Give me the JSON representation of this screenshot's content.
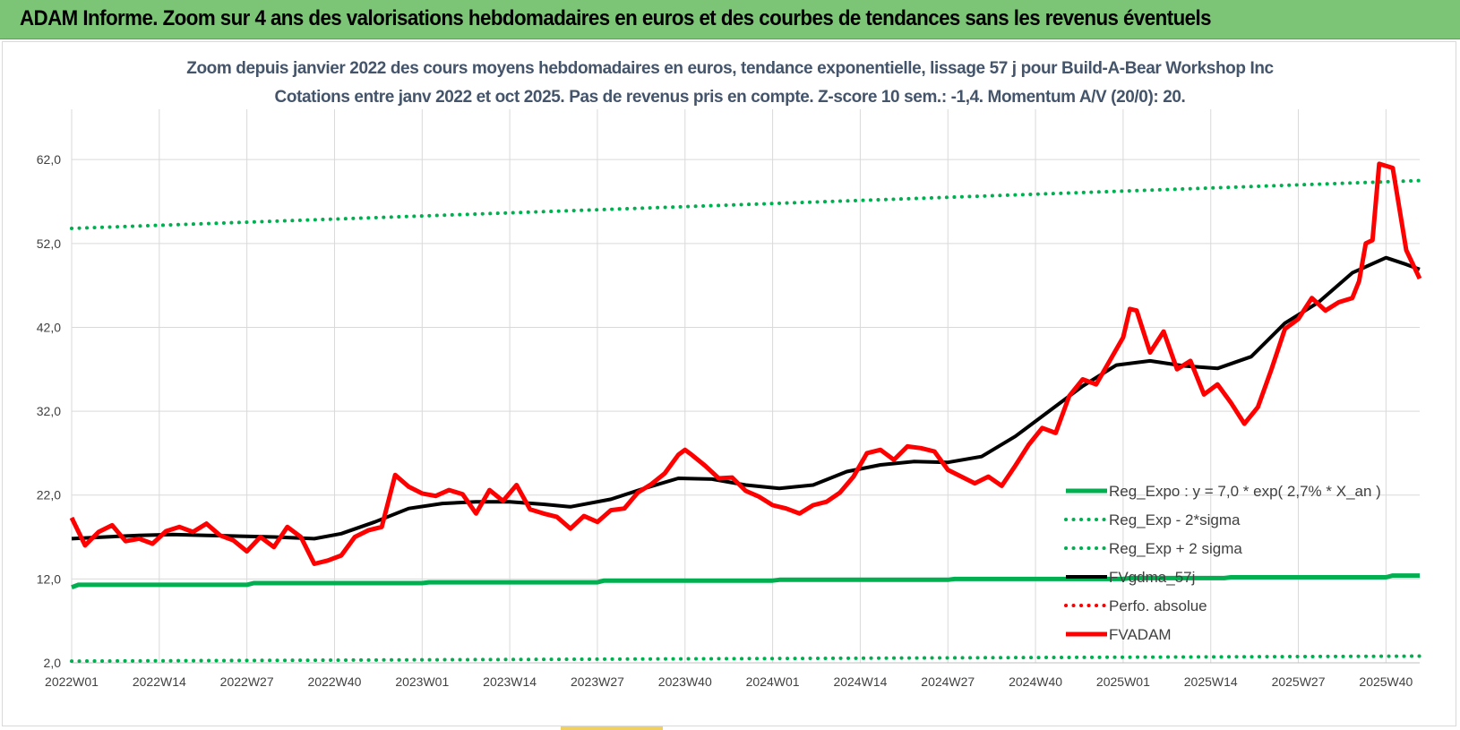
{
  "banner": {
    "title": "ADAM Informe. Zoom sur 4 ans des valorisations hebdomadaires en euros et des courbes de tendances sans les revenus éventuels"
  },
  "colors": {
    "banner": "#7cc576",
    "reg_expo": "#00b050",
    "sigma_bands": "#00b050",
    "fvgdma": "#000000",
    "perfo": "#ff0000",
    "fvadam": "#ff0000",
    "title_text": "#44546a",
    "grid": "#d9d9d9"
  },
  "chart_data": {
    "type": "line",
    "title": "Zoom depuis janvier 2022 des cours moyens hebdomadaires en euros, tendance exponentielle, lissage 57 j pour Build-A-Bear Workshop Inc",
    "subtitle": "Cotations entre janv 2022 et oct 2025. Pas de revenus pris en compte. Z-score 10 sem.: -1,4. Momentum A/V (20/0): 20.",
    "xlabel": "",
    "ylabel": "",
    "ylim": [
      2,
      68
    ],
    "yticks": [
      "2,0",
      "12,0",
      "22,0",
      "32,0",
      "42,0",
      "52,0",
      "62,0"
    ],
    "xticks": [
      "2022W01",
      "2022W14",
      "2022W27",
      "2022W40",
      "2023W01",
      "2023W14",
      "2023W27",
      "2023W40",
      "2024W01",
      "2024W14",
      "2024W27",
      "2024W40",
      "2025W01",
      "2025W14",
      "2025W27",
      "2025W40"
    ],
    "xtick_weeks": [
      0,
      13,
      26,
      39,
      52,
      65,
      78,
      91,
      104,
      117,
      130,
      143,
      156,
      169,
      182,
      195
    ],
    "n_weeks": 201,
    "grid": true,
    "legend_position": "bottom-right",
    "series": [
      {
        "name": "Reg_Expo : y = 7,0 * exp( 2,7% *  X_an )",
        "style": "solid",
        "color": "#00b050",
        "weeks": [
          0,
          1,
          26,
          27,
          52,
          53,
          78,
          79,
          104,
          105,
          130,
          131,
          156,
          157,
          171,
          172,
          195,
          196,
          200
        ],
        "values": [
          11.0,
          11.3,
          11.3,
          11.5,
          11.5,
          11.6,
          11.6,
          11.8,
          11.8,
          11.9,
          11.9,
          12.0,
          12.0,
          12.1,
          12.1,
          12.2,
          12.2,
          12.4,
          12.4
        ]
      },
      {
        "name": "Reg_Exp - 2*sigma",
        "style": "dotted",
        "color": "#00b050",
        "weeks": [
          0,
          200
        ],
        "values": [
          2.2,
          2.8
        ]
      },
      {
        "name": "Reg_Exp + 2 sigma",
        "style": "dotted",
        "color": "#00b050",
        "weeks": [
          0,
          200
        ],
        "values": [
          53.8,
          59.5
        ]
      },
      {
        "name": "FVgdma_57j",
        "style": "solid",
        "color": "#000000",
        "weeks": [
          0,
          5,
          10,
          15,
          20,
          25,
          30,
          36,
          40,
          45,
          50,
          55,
          60,
          65,
          70,
          74,
          80,
          85,
          90,
          95,
          100,
          105,
          110,
          115,
          120,
          125,
          130,
          135,
          140,
          145,
          150,
          155,
          160,
          165,
          170,
          175,
          180,
          185,
          190,
          195,
          198,
          200
        ],
        "values": [
          16.8,
          17.0,
          17.2,
          17.3,
          17.2,
          17.1,
          17.0,
          16.8,
          17.4,
          18.8,
          20.4,
          21.0,
          21.2,
          21.2,
          20.9,
          20.6,
          21.5,
          22.8,
          24.0,
          23.9,
          23.2,
          22.8,
          23.2,
          24.8,
          25.6,
          26.0,
          25.9,
          26.6,
          29.0,
          32.0,
          35.0,
          37.5,
          38.0,
          37.4,
          37.1,
          38.5,
          42.5,
          45.0,
          48.5,
          50.3,
          49.5,
          48.9
        ]
      },
      {
        "name": "Perfo. absolue",
        "style": "dotted",
        "color": "#ff0000",
        "weeks": [],
        "values": []
      },
      {
        "name": "FVADAM",
        "style": "solid",
        "color": "#ff0000",
        "weeks": [
          0,
          2,
          4,
          6,
          8,
          10,
          12,
          14,
          16,
          18,
          20,
          22,
          24,
          26,
          28,
          30,
          32,
          34,
          36,
          38,
          40,
          42,
          44,
          46,
          48,
          50,
          52,
          54,
          56,
          58,
          60,
          62,
          64,
          66,
          68,
          70,
          72,
          74,
          76,
          78,
          80,
          82,
          84,
          86,
          88,
          90,
          91,
          92,
          94,
          96,
          98,
          100,
          102,
          104,
          106,
          108,
          110,
          112,
          114,
          116,
          118,
          120,
          122,
          124,
          126,
          128,
          130,
          132,
          134,
          136,
          138,
          140,
          142,
          144,
          146,
          148,
          150,
          152,
          154,
          156,
          157,
          158,
          160,
          162,
          164,
          166,
          168,
          170,
          172,
          174,
          176,
          178,
          180,
          182,
          184,
          186,
          188,
          190,
          191,
          192,
          193,
          194,
          196,
          198,
          200
        ],
        "values": [
          19.3,
          16.0,
          17.6,
          18.4,
          16.5,
          16.8,
          16.2,
          17.7,
          18.2,
          17.6,
          18.6,
          17.2,
          16.6,
          15.3,
          17.0,
          15.8,
          18.2,
          17.0,
          13.8,
          14.2,
          14.8,
          17.0,
          17.8,
          18.2,
          24.4,
          23.0,
          22.2,
          21.9,
          22.6,
          22.1,
          19.8,
          22.6,
          21.3,
          23.2,
          20.3,
          19.8,
          19.4,
          18.0,
          19.5,
          18.8,
          20.2,
          20.4,
          22.3,
          23.3,
          24.6,
          26.8,
          27.4,
          26.8,
          25.5,
          24.0,
          24.1,
          22.5,
          21.8,
          20.8,
          20.4,
          19.8,
          20.8,
          21.2,
          22.3,
          24.2,
          27.0,
          27.4,
          26.2,
          27.8,
          27.6,
          27.2,
          25.0,
          24.2,
          23.4,
          24.2,
          23.1,
          25.5,
          28.0,
          30.0,
          29.4,
          33.8,
          35.8,
          35.2,
          38.0,
          40.8,
          44.2,
          44.0,
          39.0,
          41.5,
          37.0,
          38.0,
          34.0,
          35.2,
          33.0,
          30.5,
          32.5,
          37.0,
          41.8,
          43.0,
          45.5,
          44.0,
          45.0,
          45.5,
          47.5,
          52.0,
          52.4,
          61.5,
          61.0,
          51.2,
          47.8
        ]
      }
    ]
  }
}
